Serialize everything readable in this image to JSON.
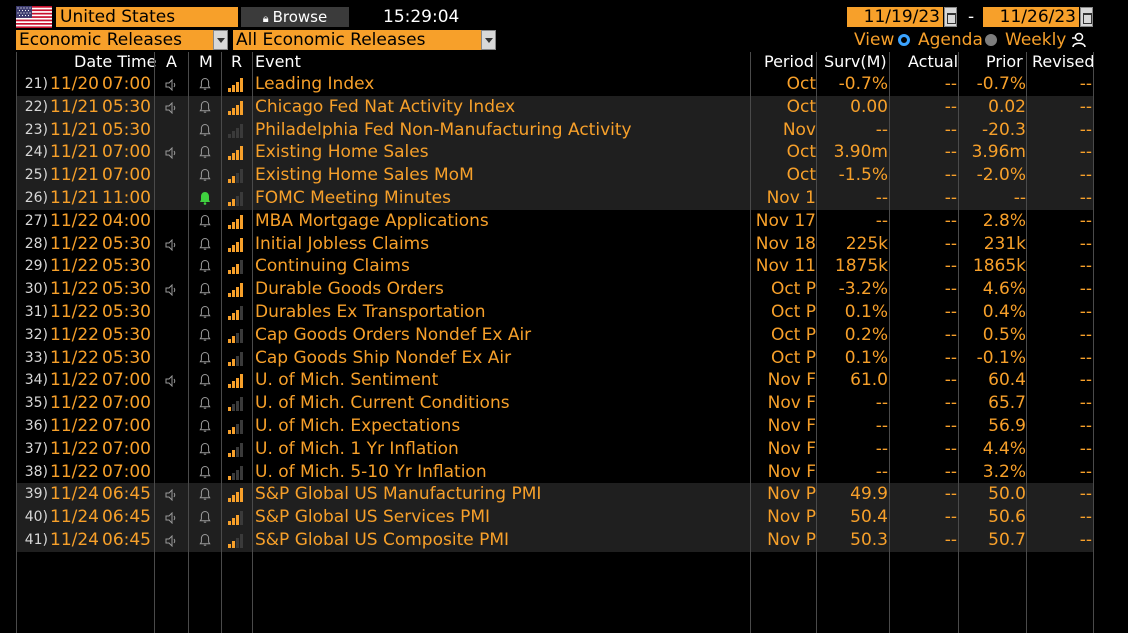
{
  "header": {
    "country": "United States",
    "browse_label": "Browse",
    "time": "15:29:04",
    "date_from": "11/19/23",
    "date_to": "11/26/23",
    "date_separator": "-"
  },
  "filters": {
    "category": "Economic Releases",
    "subcategory": "All Economic Releases",
    "view_label": "View",
    "view_options": [
      {
        "label": "Agenda",
        "selected": true
      },
      {
        "label": "Weekly",
        "selected": false
      }
    ]
  },
  "columns": {
    "date_time": "Date Time",
    "a": "A",
    "m": "M",
    "r": "R",
    "event": "Event",
    "period": "Period",
    "survey": "Surv(M)",
    "actual": "Actual",
    "prior": "Prior",
    "revised": "Revised"
  },
  "colors": {
    "accent": "#f7a02a",
    "alert_green": "#3fd13f",
    "radio_selected": "#3ba3ff"
  },
  "rows": [
    {
      "num": "21)",
      "date": "11/20",
      "time": "07:00",
      "speaker": true,
      "alert": false,
      "relevance": 4,
      "event": "Leading Index",
      "period": "Oct",
      "survey": "-0.7%",
      "actual": "--",
      "prior": "-0.7%",
      "revised": "--",
      "shade": false
    },
    {
      "num": "22)",
      "date": "11/21",
      "time": "05:30",
      "speaker": true,
      "alert": false,
      "relevance": 4,
      "event": "Chicago Fed Nat Activity Index",
      "period": "Oct",
      "survey": "0.00",
      "actual": "--",
      "prior": "0.02",
      "revised": "--",
      "shade": true
    },
    {
      "num": "23)",
      "date": "11/21",
      "time": "05:30",
      "speaker": false,
      "alert": false,
      "relevance": 0,
      "event": "Philadelphia Fed Non-Manufacturing Activity",
      "period": "Nov",
      "survey": "--",
      "actual": "--",
      "prior": "-20.3",
      "revised": "--",
      "shade": true
    },
    {
      "num": "24)",
      "date": "11/21",
      "time": "07:00",
      "speaker": true,
      "alert": false,
      "relevance": 4,
      "event": "Existing Home Sales",
      "period": "Oct",
      "survey": "3.90m",
      "actual": "--",
      "prior": "3.96m",
      "revised": "--",
      "shade": true
    },
    {
      "num": "25)",
      "date": "11/21",
      "time": "07:00",
      "speaker": false,
      "alert": false,
      "relevance": 2,
      "event": "Existing Home Sales MoM",
      "period": "Oct",
      "survey": "-1.5%",
      "actual": "--",
      "prior": "-2.0%",
      "revised": "--",
      "shade": true
    },
    {
      "num": "26)",
      "date": "11/21",
      "time": "11:00",
      "speaker": false,
      "alert": true,
      "relevance": 2,
      "event": "FOMC Meeting Minutes",
      "period": "Nov 1",
      "survey": "--",
      "actual": "--",
      "prior": "--",
      "revised": "--",
      "shade": true
    },
    {
      "num": "27)",
      "date": "11/22",
      "time": "04:00",
      "speaker": false,
      "alert": false,
      "relevance": 4,
      "event": "MBA Mortgage Applications",
      "period": "Nov 17",
      "survey": "--",
      "actual": "--",
      "prior": "2.8%",
      "revised": "--",
      "shade": false
    },
    {
      "num": "28)",
      "date": "11/22",
      "time": "05:30",
      "speaker": true,
      "alert": false,
      "relevance": 4,
      "event": "Initial Jobless Claims",
      "period": "Nov 18",
      "survey": "225k",
      "actual": "--",
      "prior": "231k",
      "revised": "--",
      "shade": false
    },
    {
      "num": "29)",
      "date": "11/22",
      "time": "05:30",
      "speaker": false,
      "alert": false,
      "relevance": 3,
      "event": "Continuing Claims",
      "period": "Nov 11",
      "survey": "1875k",
      "actual": "--",
      "prior": "1865k",
      "revised": "--",
      "shade": false
    },
    {
      "num": "30)",
      "date": "11/22",
      "time": "05:30",
      "speaker": true,
      "alert": false,
      "relevance": 4,
      "event": "Durable Goods Orders",
      "period": "Oct P",
      "survey": "-3.2%",
      "actual": "--",
      "prior": "4.6%",
      "revised": "--",
      "shade": false
    },
    {
      "num": "31)",
      "date": "11/22",
      "time": "05:30",
      "speaker": false,
      "alert": false,
      "relevance": 3,
      "event": "Durables Ex Transportation",
      "period": "Oct P",
      "survey": "0.1%",
      "actual": "--",
      "prior": "0.4%",
      "revised": "--",
      "shade": false
    },
    {
      "num": "32)",
      "date": "11/22",
      "time": "05:30",
      "speaker": false,
      "alert": false,
      "relevance": 2,
      "event": "Cap Goods Orders Nondef Ex Air",
      "period": "Oct P",
      "survey": "0.2%",
      "actual": "--",
      "prior": "0.5%",
      "revised": "--",
      "shade": false
    },
    {
      "num": "33)",
      "date": "11/22",
      "time": "05:30",
      "speaker": false,
      "alert": false,
      "relevance": 2,
      "event": "Cap Goods Ship Nondef Ex Air",
      "period": "Oct P",
      "survey": "0.1%",
      "actual": "--",
      "prior": "-0.1%",
      "revised": "--",
      "shade": false
    },
    {
      "num": "34)",
      "date": "11/22",
      "time": "07:00",
      "speaker": true,
      "alert": false,
      "relevance": 4,
      "event": "U. of Mich. Sentiment",
      "period": "Nov F",
      "survey": "61.0",
      "actual": "--",
      "prior": "60.4",
      "revised": "--",
      "shade": false
    },
    {
      "num": "35)",
      "date": "11/22",
      "time": "07:00",
      "speaker": false,
      "alert": false,
      "relevance": 1,
      "event": "U. of Mich. Current Conditions",
      "period": "Nov F",
      "survey": "--",
      "actual": "--",
      "prior": "65.7",
      "revised": "--",
      "shade": false
    },
    {
      "num": "36)",
      "date": "11/22",
      "time": "07:00",
      "speaker": false,
      "alert": false,
      "relevance": 2,
      "event": "U. of Mich. Expectations",
      "period": "Nov F",
      "survey": "--",
      "actual": "--",
      "prior": "56.9",
      "revised": "--",
      "shade": false
    },
    {
      "num": "37)",
      "date": "11/22",
      "time": "07:00",
      "speaker": false,
      "alert": false,
      "relevance": 2,
      "event": "U. of Mich. 1 Yr Inflation",
      "period": "Nov F",
      "survey": "--",
      "actual": "--",
      "prior": "4.4%",
      "revised": "--",
      "shade": false
    },
    {
      "num": "38)",
      "date": "11/22",
      "time": "07:00",
      "speaker": false,
      "alert": false,
      "relevance": 1,
      "event": "U. of Mich. 5-10 Yr Inflation",
      "period": "Nov F",
      "survey": "--",
      "actual": "--",
      "prior": "3.2%",
      "revised": "--",
      "shade": false
    },
    {
      "num": "39)",
      "date": "11/24",
      "time": "06:45",
      "speaker": true,
      "alert": false,
      "relevance": 4,
      "event": "S&P Global US Manufacturing PMI",
      "period": "Nov P",
      "survey": "49.9",
      "actual": "--",
      "prior": "50.0",
      "revised": "--",
      "shade": true
    },
    {
      "num": "40)",
      "date": "11/24",
      "time": "06:45",
      "speaker": true,
      "alert": false,
      "relevance": 3,
      "event": "S&P Global US Services PMI",
      "period": "Nov P",
      "survey": "50.4",
      "actual": "--",
      "prior": "50.6",
      "revised": "--",
      "shade": true
    },
    {
      "num": "41)",
      "date": "11/24",
      "time": "06:45",
      "speaker": true,
      "alert": false,
      "relevance": 2,
      "event": "S&P Global US Composite PMI",
      "period": "Nov P",
      "survey": "50.3",
      "actual": "--",
      "prior": "50.7",
      "revised": "--",
      "shade": true
    }
  ]
}
